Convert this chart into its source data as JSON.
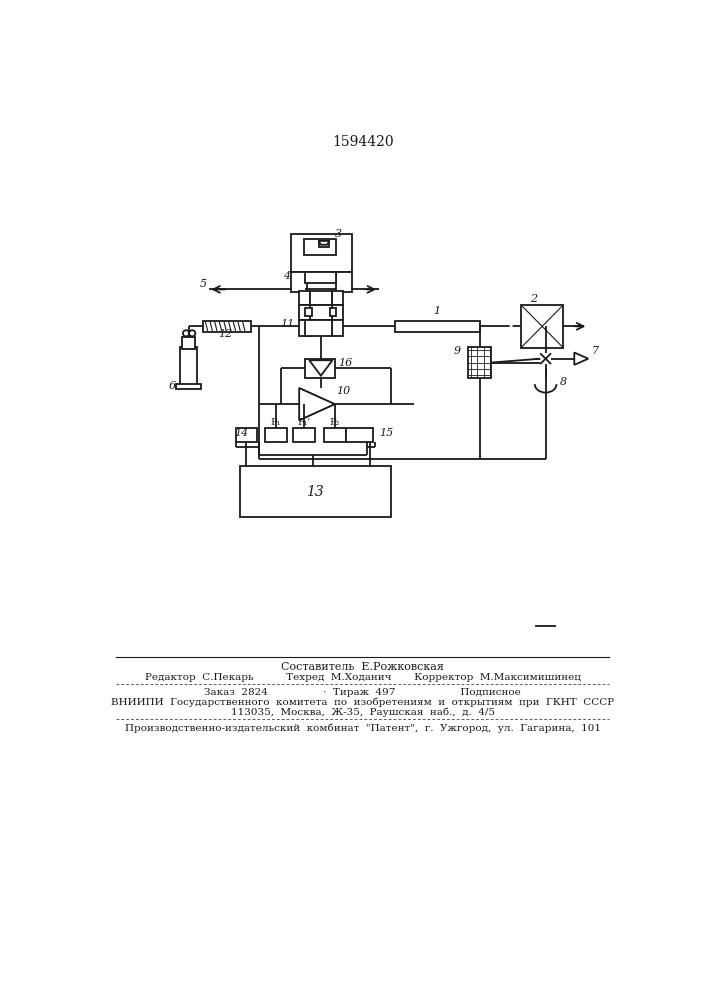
{
  "patent_number": "1594420",
  "bg_color": "#ffffff",
  "line_color": "#1a1a1a",
  "footer_line1": "Составитель  Е.Рожковская",
  "footer_line2": "Редактор  С.Пекарь          Техред  М.Ходанич       Корректор  М.Максимишинец",
  "footer_line3": "Заказ  2824                 ·  Тираж  497                    Подписное",
  "footer_line4": "ВНИИПИ  Государственного  комитета  по  изобретениям  и  открытиям  при  ГКНТ  СССР",
  "footer_line5": "113035,  Москва,  Ж-35,  Раушская  наб.,  д.  4/5",
  "footer_line6": "Производственно-издательский  комбинат  \"Патент\",  г.  Ужгород,  ул.  Гагарина,  101"
}
